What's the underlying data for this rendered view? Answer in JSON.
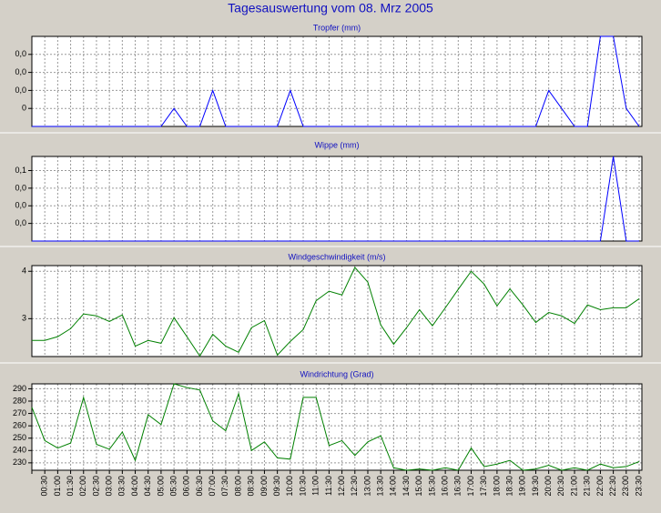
{
  "title": "Tagesauswertung vom 08. Mrz 2005",
  "chart_data": [
    {
      "type": "line",
      "title": "Tropfer (mm)",
      "color": "#0000ff",
      "grid": true,
      "ylim": [
        0,
        0.5
      ],
      "yticks": [
        {
          "value": 0.1,
          "label": "0"
        },
        {
          "value": 0.2,
          "label": "0,0"
        },
        {
          "value": 0.3,
          "label": "0,0"
        },
        {
          "value": 0.4,
          "label": "0,0"
        }
      ],
      "values": [
        0,
        0,
        0,
        0,
        0,
        0,
        0,
        0,
        0,
        0,
        0,
        0.1,
        0,
        0,
        0.2,
        0,
        0,
        0,
        0,
        0,
        0.2,
        0,
        0,
        0,
        0,
        0,
        0,
        0,
        0,
        0,
        0,
        0,
        0,
        0,
        0,
        0,
        0,
        0,
        0,
        0,
        0.2,
        0.1,
        0,
        0,
        0.5,
        0.5,
        0.1,
        0
      ]
    },
    {
      "type": "line",
      "title": "Wippe (mm)",
      "color": "#0000ff",
      "grid": true,
      "ylim": [
        0,
        0.12
      ],
      "yticks": [
        {
          "value": 0.025,
          "label": "0,0"
        },
        {
          "value": 0.05,
          "label": "0,0"
        },
        {
          "value": 0.075,
          "label": "0,0"
        },
        {
          "value": 0.1,
          "label": "0,1"
        }
      ],
      "values": [
        0,
        0,
        0,
        0,
        0,
        0,
        0,
        0,
        0,
        0,
        0,
        0,
        0,
        0,
        0,
        0,
        0,
        0,
        0,
        0,
        0,
        0,
        0,
        0,
        0,
        0,
        0,
        0,
        0,
        0,
        0,
        0,
        0,
        0,
        0,
        0,
        0,
        0,
        0,
        0,
        0,
        0,
        0,
        0,
        0,
        0.12,
        0,
        0
      ]
    },
    {
      "type": "line",
      "title": "Windgeschwindigkeit (m/s)",
      "color": "#008000",
      "grid": true,
      "ylim": [
        2.2,
        4.12
      ],
      "yticks": [
        3,
        4
      ],
      "values": [
        2.54,
        2.54,
        2.62,
        2.79,
        3.1,
        3.06,
        2.94,
        3.08,
        2.42,
        2.54,
        2.48,
        3.02,
        2.62,
        2.21,
        2.67,
        2.42,
        2.29,
        2.81,
        2.96,
        2.23,
        2.52,
        2.77,
        3.38,
        3.58,
        3.5,
        4.08,
        3.77,
        2.87,
        2.46,
        2.81,
        3.19,
        2.85,
        3.23,
        3.62,
        4.0,
        3.73,
        3.27,
        3.63,
        3.29,
        2.92,
        3.13,
        3.06,
        2.9,
        3.29,
        3.19,
        3.23,
        3.23,
        3.42
      ]
    },
    {
      "type": "line",
      "title": "Windrichtung (Grad)",
      "color": "#008000",
      "grid": true,
      "ylim": [
        224,
        294
      ],
      "yticks": [
        230,
        240,
        250,
        260,
        270,
        280,
        290
      ],
      "categories": [
        null,
        "00:30",
        "01:00",
        "01:30",
        "02:00",
        "02:30",
        "03:00",
        "03:30",
        "04:00",
        "04:30",
        "05:00",
        "05:30",
        "06:00",
        "06:30",
        "07:00",
        "07:30",
        "08:00",
        "08:30",
        "09:00",
        "09:30",
        "10:00",
        "10:30",
        "11:00",
        "11:30",
        "12:00",
        "12:30",
        "13:00",
        "13:30",
        "14:00",
        "14:30",
        "15:00",
        "15:30",
        "16:00",
        "16:30",
        "17:00",
        "17:30",
        "18:00",
        "18:30",
        "19:00",
        "19:30",
        "20:00",
        "20:30",
        "21:00",
        "21:30",
        "22:00",
        "22:30",
        "23:00",
        "23:30"
      ],
      "values": [
        275,
        248,
        242,
        246,
        283,
        245,
        241,
        255,
        232,
        269,
        261,
        294,
        291,
        289,
        264,
        256,
        286,
        240,
        247,
        234,
        233,
        283,
        283,
        244,
        248,
        236,
        247,
        252,
        226,
        224,
        225,
        224,
        226,
        224,
        242,
        227,
        229,
        232,
        224,
        225,
        228,
        224,
        226,
        224,
        229,
        226,
        227,
        231
      ]
    }
  ]
}
